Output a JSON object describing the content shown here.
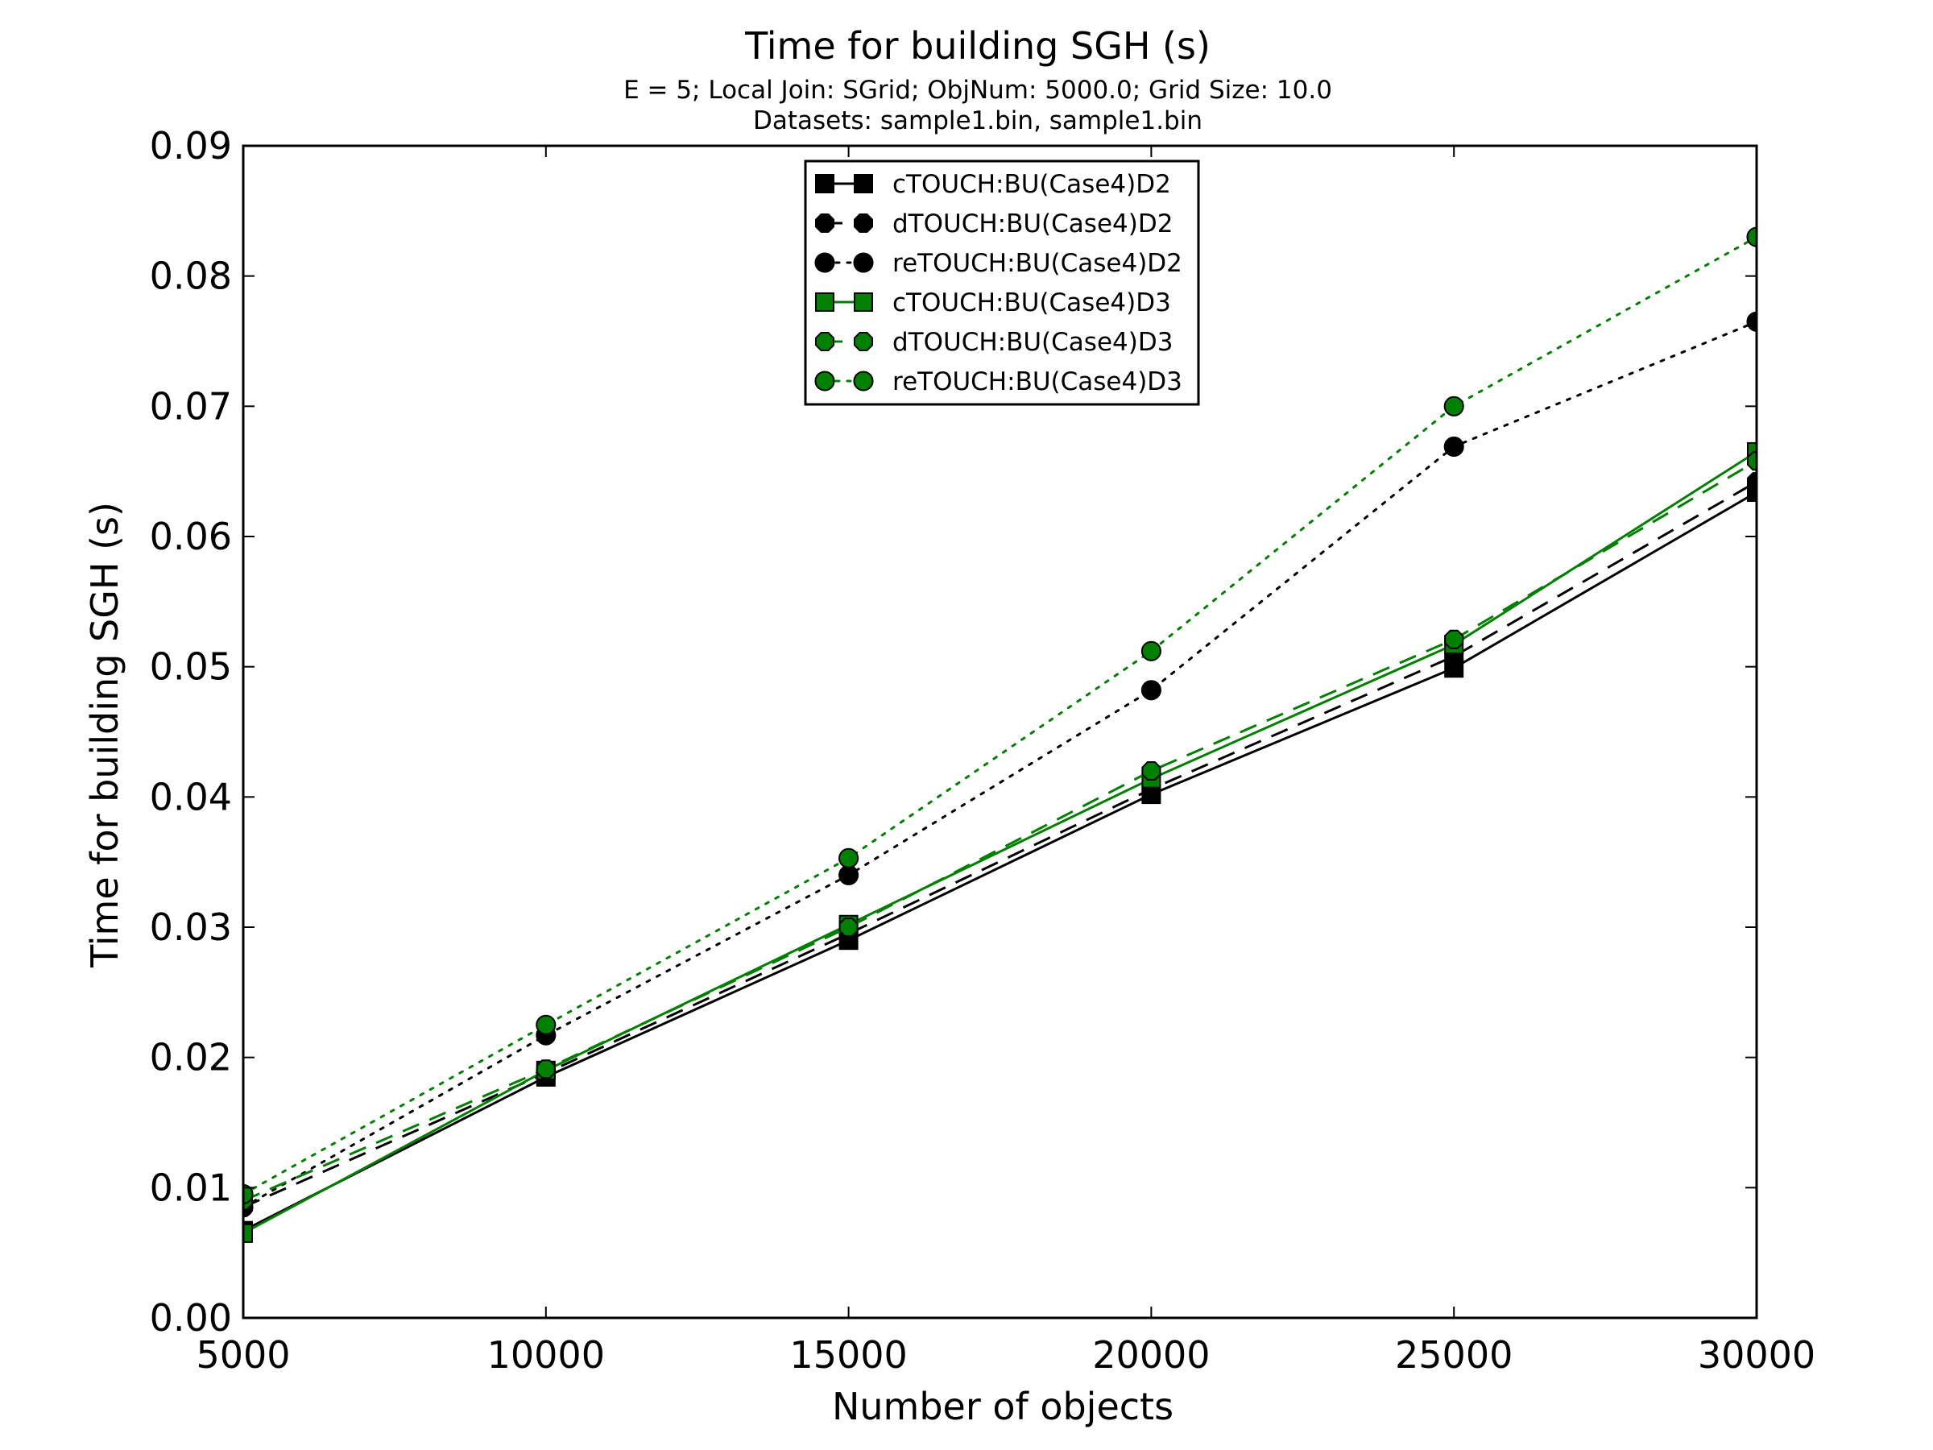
{
  "chart_data": {
    "type": "line",
    "title": "Time for building SGH (s)",
    "subtitle_lines": [
      "E = 5; Local Join: SGrid; ObjNum: 5000.0; Grid Size: 10.0",
      "Datasets: sample1.bin, sample1.bin"
    ],
    "xlabel": "Number of objects",
    "ylabel": "Time for building SGH (s)",
    "xlim": [
      5000,
      30000
    ],
    "ylim": [
      0,
      0.09
    ],
    "x_ticks": [
      "5000",
      "10000",
      "15000",
      "20000",
      "25000",
      "30000"
    ],
    "y_ticks": [
      "0.00",
      "0.01",
      "0.02",
      "0.03",
      "0.04",
      "0.05",
      "0.06",
      "0.07",
      "0.08",
      "0.09"
    ],
    "x_tick_values": [
      5000,
      10000,
      15000,
      20000,
      25000,
      30000
    ],
    "y_tick_values": [
      0,
      0.01,
      0.02,
      0.03,
      0.04,
      0.05,
      0.06,
      0.07,
      0.08,
      0.09
    ],
    "grid": false,
    "legend_position": "top-center",
    "x": [
      5000,
      10000,
      15000,
      20000,
      25000,
      30000
    ],
    "series": [
      {
        "name": "cTOUCH:BU(Case4)D2",
        "color": "#000000",
        "line": "solid",
        "marker": "square",
        "values": [
          0.0067,
          0.0185,
          0.029,
          0.0402,
          0.0499,
          0.0634
        ]
      },
      {
        "name": "dTOUCH:BU(Case4)D2",
        "color": "#000000",
        "line": "dashed",
        "marker": "octagon",
        "values": [
          0.0085,
          0.0188,
          0.0295,
          0.0406,
          0.0508,
          0.0642
        ]
      },
      {
        "name": "reTOUCH:BU(Case4)D2",
        "color": "#000000",
        "line": "dotted",
        "marker": "circle",
        "values": [
          0.0085,
          0.0217,
          0.034,
          0.0482,
          0.0669,
          0.0765
        ]
      },
      {
        "name": "cTOUCH:BU(Case4)D3",
        "color": "#008000",
        "line": "solid",
        "marker": "square",
        "values": [
          0.0065,
          0.019,
          0.0302,
          0.0414,
          0.0517,
          0.0665
        ]
      },
      {
        "name": "dTOUCH:BU(Case4)D3",
        "color": "#008000",
        "line": "dashed",
        "marker": "octagon",
        "values": [
          0.009,
          0.0191,
          0.03,
          0.042,
          0.0521,
          0.0658
        ]
      },
      {
        "name": "reTOUCH:BU(Case4)D3",
        "color": "#008000",
        "line": "dotted",
        "marker": "circle",
        "values": [
          0.0095,
          0.0225,
          0.0353,
          0.0512,
          0.07,
          0.083
        ]
      }
    ]
  }
}
